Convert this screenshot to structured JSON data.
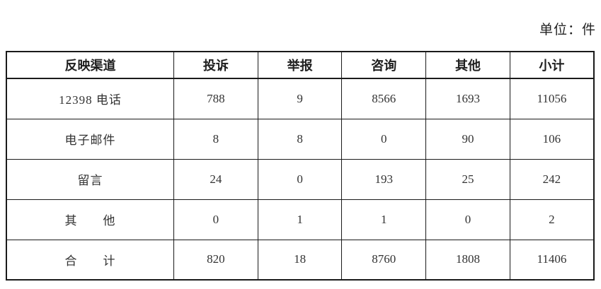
{
  "page": {
    "unit_label": "单位：件"
  },
  "table": {
    "headers": [
      "反映渠道",
      "投诉",
      "举报",
      "咨询",
      "其他",
      "小计"
    ],
    "rows": [
      {
        "channel": "12398 电话",
        "values": [
          "788",
          "9",
          "8566",
          "1693",
          "11056"
        ]
      },
      {
        "channel": "电子邮件",
        "values": [
          "8",
          "8",
          "0",
          "90",
          "106"
        ]
      },
      {
        "channel": "留言",
        "values": [
          "24",
          "0",
          "193",
          "25",
          "242"
        ]
      },
      {
        "channel": "其　　他",
        "values": [
          "0",
          "1",
          "1",
          "0",
          "2"
        ]
      },
      {
        "channel": "合　　计",
        "values": [
          "820",
          "18",
          "8760",
          "1808",
          "11406"
        ]
      }
    ]
  },
  "chart_data": {
    "type": "table",
    "title": "",
    "unit": "单位：件",
    "columns": [
      "反映渠道",
      "投诉",
      "举报",
      "咨询",
      "其他",
      "小计"
    ],
    "records": [
      [
        "12398 电话",
        788,
        9,
        8566,
        1693,
        11056
      ],
      [
        "电子邮件",
        8,
        8,
        0,
        90,
        106
      ],
      [
        "留言",
        24,
        0,
        193,
        25,
        242
      ],
      [
        "其他",
        0,
        1,
        1,
        0,
        2
      ],
      [
        "合计",
        820,
        18,
        8760,
        1808,
        11406
      ]
    ]
  }
}
